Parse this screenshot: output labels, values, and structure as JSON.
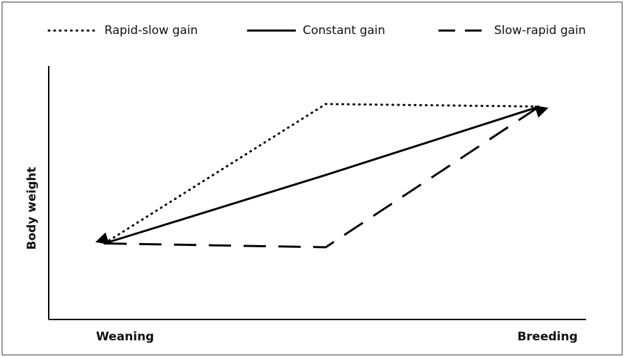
{
  "chart_data": {
    "type": "line",
    "categories": [
      "Weaning",
      null,
      "Breeding"
    ],
    "y_label": "Body weight",
    "ylim": [
      0,
      100
    ],
    "series": [
      {
        "name": "Rapid-slow gain",
        "color": "#000000",
        "style": "dotted",
        "values": [
          30,
          85,
          84
        ]
      },
      {
        "name": "Constant gain",
        "color": "#000000",
        "style": "solid",
        "values": [
          30,
          57,
          84
        ]
      },
      {
        "name": "Slow-rapid gain",
        "color": "#000000",
        "style": "dashed",
        "values": [
          30,
          28.5,
          84
        ]
      }
    ]
  }
}
